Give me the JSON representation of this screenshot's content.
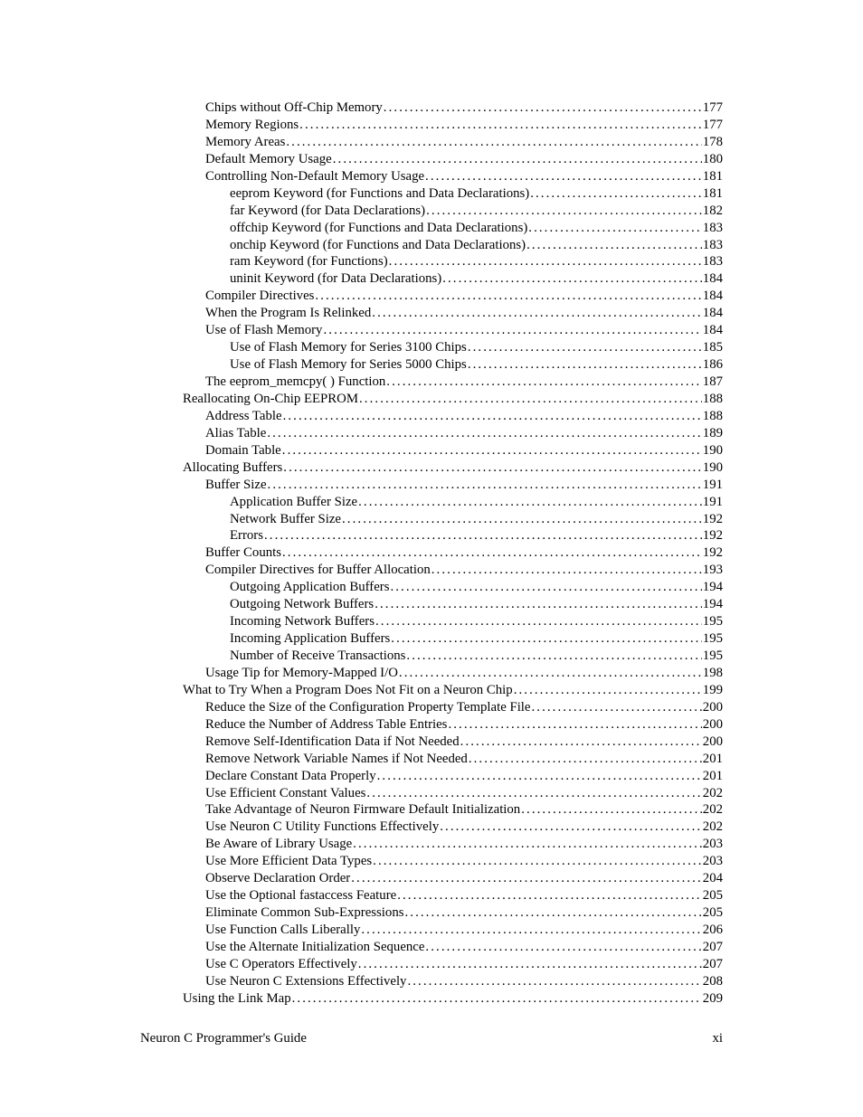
{
  "footer": {
    "left": "Neuron C Programmer's Guide",
    "right": "xi"
  },
  "toc": [
    {
      "indent": 1,
      "text": "Chips without Off-Chip Memory",
      "page": "177"
    },
    {
      "indent": 1,
      "text": "Memory Regions",
      "page": "177"
    },
    {
      "indent": 1,
      "text": "Memory Areas",
      "page": "178"
    },
    {
      "indent": 1,
      "text": "Default Memory Usage",
      "page": "180"
    },
    {
      "indent": 1,
      "text": "Controlling Non-Default Memory Usage",
      "page": "181"
    },
    {
      "indent": 2,
      "text": "eeprom Keyword (for Functions and Data Declarations)",
      "page": "181"
    },
    {
      "indent": 2,
      "text": "far Keyword (for Data Declarations)",
      "page": "182"
    },
    {
      "indent": 2,
      "text": "offchip Keyword (for Functions and Data Declarations)",
      "page": "183"
    },
    {
      "indent": 2,
      "text": "onchip Keyword (for Functions and Data Declarations)",
      "page": "183"
    },
    {
      "indent": 2,
      "text": "ram Keyword (for Functions)",
      "page": "183"
    },
    {
      "indent": 2,
      "text": "uninit Keyword (for Data Declarations)",
      "page": "184"
    },
    {
      "indent": 1,
      "text": "Compiler Directives",
      "page": "184"
    },
    {
      "indent": 1,
      "text": "When the Program Is Relinked",
      "page": "184"
    },
    {
      "indent": 1,
      "text": "Use of Flash Memory",
      "page": "184"
    },
    {
      "indent": 2,
      "text": "Use of Flash Memory for Series 3100 Chips",
      "page": "185"
    },
    {
      "indent": 2,
      "text": "Use of Flash Memory for Series 5000 Chips",
      "page": "186"
    },
    {
      "indent": 1,
      "text": "The eeprom_memcpy( ) Function",
      "page": "187"
    },
    {
      "indent": 0,
      "text": "Reallocating On-Chip EEPROM",
      "page": "188"
    },
    {
      "indent": 1,
      "text": "Address Table",
      "page": "188"
    },
    {
      "indent": 1,
      "text": "Alias Table",
      "page": "189"
    },
    {
      "indent": 1,
      "text": "Domain Table",
      "page": "190"
    },
    {
      "indent": 0,
      "text": "Allocating Buffers",
      "page": "190"
    },
    {
      "indent": 1,
      "text": "Buffer Size",
      "page": "191"
    },
    {
      "indent": 2,
      "text": "Application Buffer Size",
      "page": "191"
    },
    {
      "indent": 2,
      "text": "Network Buffer Size",
      "page": "192"
    },
    {
      "indent": 2,
      "text": "Errors",
      "page": "192"
    },
    {
      "indent": 1,
      "text": "Buffer Counts",
      "page": "192"
    },
    {
      "indent": 1,
      "text": "Compiler Directives for Buffer Allocation",
      "page": "193"
    },
    {
      "indent": 2,
      "text": "Outgoing Application Buffers",
      "page": "194"
    },
    {
      "indent": 2,
      "text": "Outgoing Network Buffers",
      "page": "194"
    },
    {
      "indent": 2,
      "text": "Incoming Network Buffers",
      "page": "195"
    },
    {
      "indent": 2,
      "text": "Incoming Application Buffers",
      "page": "195"
    },
    {
      "indent": 2,
      "text": "Number of Receive Transactions",
      "page": "195"
    },
    {
      "indent": 1,
      "text": "Usage Tip for Memory-Mapped I/O",
      "page": "198"
    },
    {
      "indent": 0,
      "text": "What to Try When a Program Does Not Fit on a Neuron Chip",
      "page": "199"
    },
    {
      "indent": 1,
      "text": "Reduce the Size of the Configuration Property Template File",
      "page": "200"
    },
    {
      "indent": 1,
      "text": "Reduce the Number of Address Table Entries",
      "page": "200"
    },
    {
      "indent": 1,
      "text": "Remove Self-Identification Data if Not Needed",
      "page": "200"
    },
    {
      "indent": 1,
      "text": "Remove Network Variable Names if Not Needed",
      "page": "201"
    },
    {
      "indent": 1,
      "text": "Declare Constant Data Properly",
      "page": "201"
    },
    {
      "indent": 1,
      "text": "Use Efficient Constant Values",
      "page": "202"
    },
    {
      "indent": 1,
      "text": "Take Advantage of Neuron Firmware Default Initialization",
      "page": "202"
    },
    {
      "indent": 1,
      "text": "Use Neuron C Utility Functions Effectively",
      "page": "202"
    },
    {
      "indent": 1,
      "text": "Be Aware of Library Usage",
      "page": "203"
    },
    {
      "indent": 1,
      "text": "Use More Efficient Data Types",
      "page": "203"
    },
    {
      "indent": 1,
      "text": "Observe Declaration Order",
      "page": "204"
    },
    {
      "indent": 1,
      "text": "Use the Optional fastaccess Feature",
      "page": "205"
    },
    {
      "indent": 1,
      "text": "Eliminate Common Sub-Expressions",
      "page": "205"
    },
    {
      "indent": 1,
      "text": "Use Function Calls Liberally",
      "page": "206"
    },
    {
      "indent": 1,
      "text": "Use the Alternate Initialization Sequence",
      "page": "207"
    },
    {
      "indent": 1,
      "text": "Use C Operators Effectively",
      "page": "207"
    },
    {
      "indent": 1,
      "text": "Use Neuron C Extensions Effectively",
      "page": "208"
    },
    {
      "indent": 0,
      "text": "Using the Link Map",
      "page": "209"
    }
  ]
}
